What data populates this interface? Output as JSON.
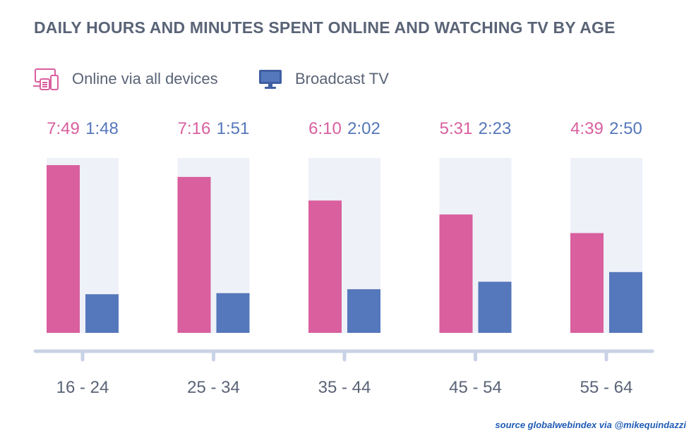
{
  "chart_data": {
    "type": "bar",
    "title": "DAILY HOURS AND MINUTES SPENT ONLINE AND WATCHING TV BY AGE",
    "categories": [
      "16 - 24",
      "25 - 34",
      "35 - 44",
      "45 - 54",
      "55 - 64"
    ],
    "series": [
      {
        "name": "Online via all devices",
        "color": "#d95f9e",
        "icon": "devices-icon",
        "labels": [
          "7:49",
          "7:16",
          "6:10",
          "5:31",
          "4:39"
        ],
        "values": [
          7.817,
          7.267,
          6.167,
          5.517,
          4.65
        ]
      },
      {
        "name": "Broadcast TV",
        "color": "#5577bb",
        "icon": "tv-icon",
        "labels": [
          "1:48",
          "1:51",
          "2:02",
          "2:23",
          "2:50"
        ],
        "values": [
          1.8,
          1.85,
          2.033,
          2.383,
          2.833
        ]
      }
    ],
    "ylim": [
      0,
      8.15
    ],
    "xlabel": "",
    "ylabel": "",
    "grid": false,
    "axis_color": "#c9d2e6",
    "track_color": "#eef1f8",
    "category_label_color": "#5a6477"
  },
  "source": "source globalwebindex via @mikequindazzi"
}
